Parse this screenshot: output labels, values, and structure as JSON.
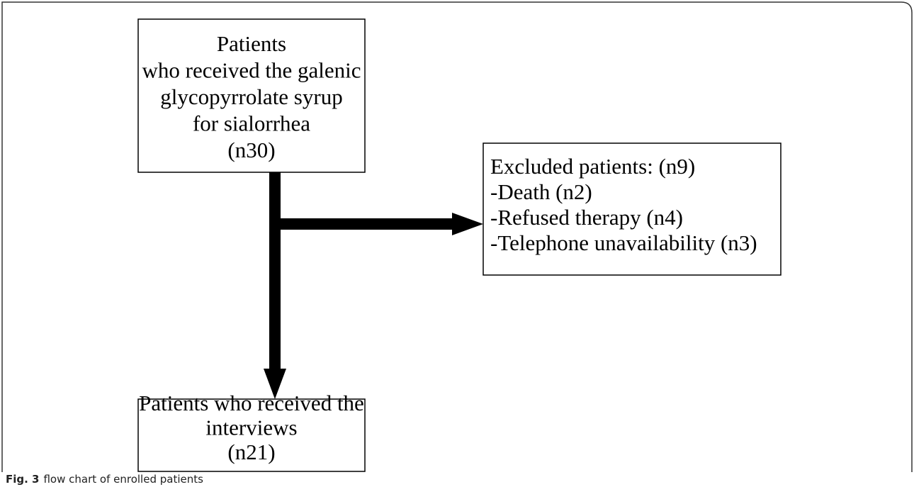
{
  "nodes": [
    {
      "lines": [
        "Patients",
        "who received the galenic",
        "glycopyrrolate syrup",
        "for sialorrhea",
        "(n30)"
      ]
    },
    {
      "lines": [
        "Excluded patients: (n9)",
        "-Death (n2)",
        "-Refused therapy (n4)",
        "-Telephone unavailability (n3)"
      ]
    },
    {
      "lines": [
        "Patients who received the",
        "interviews",
        "(n21)"
      ]
    }
  ],
  "caption": {
    "label": "Fig. 3",
    "text": "flow chart of enrolled patients"
  }
}
